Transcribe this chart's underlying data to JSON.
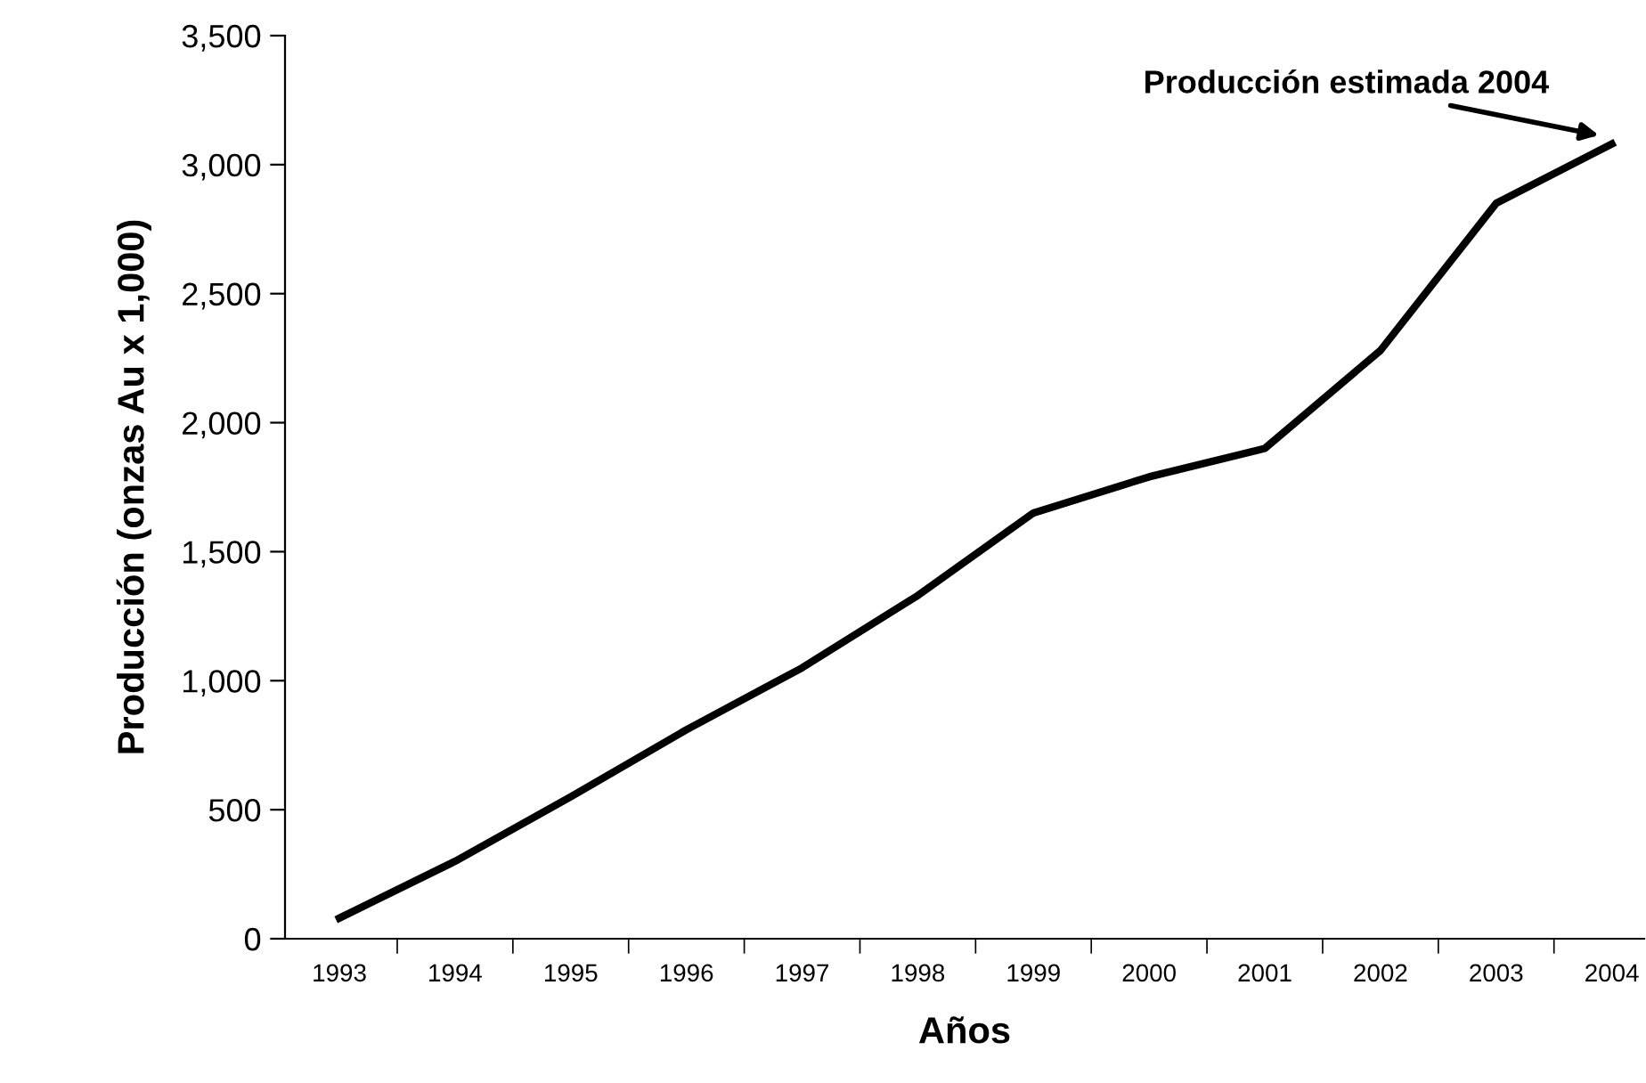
{
  "chart_data": {
    "type": "line",
    "xlabel": "Años",
    "ylabel": "Producción (onzas Au x 1,000)",
    "categories": [
      "1993",
      "1994",
      "1995",
      "1996",
      "1997",
      "1998",
      "1999",
      "2000",
      "2001",
      "2002",
      "2003",
      "2004"
    ],
    "series": [
      {
        "color": "#000000",
        "values": [
          80,
          300,
          550,
          810,
          1050,
          1330,
          1650,
          1790,
          1900,
          2280,
          2850,
          3080
        ]
      }
    ],
    "ylim": [
      0,
      3500
    ],
    "yticks": [
      0,
      500,
      {
        "value": 1000,
        "label": "1,000"
      },
      {
        "value": 1500,
        "label": "1,500"
      },
      {
        "value": 2000,
        "label": "2,000"
      },
      {
        "value": 2500,
        "label": "2,500"
      },
      {
        "value": 3000,
        "label": "3,000"
      },
      {
        "value": 3500,
        "label": "3,500"
      }
    ],
    "annotations": [
      {
        "text": "Producción estimada 2004",
        "x": "2004",
        "y": 3080
      }
    ],
    "grid": false,
    "legend": false,
    "marker": "none",
    "line_style": "solid"
  }
}
